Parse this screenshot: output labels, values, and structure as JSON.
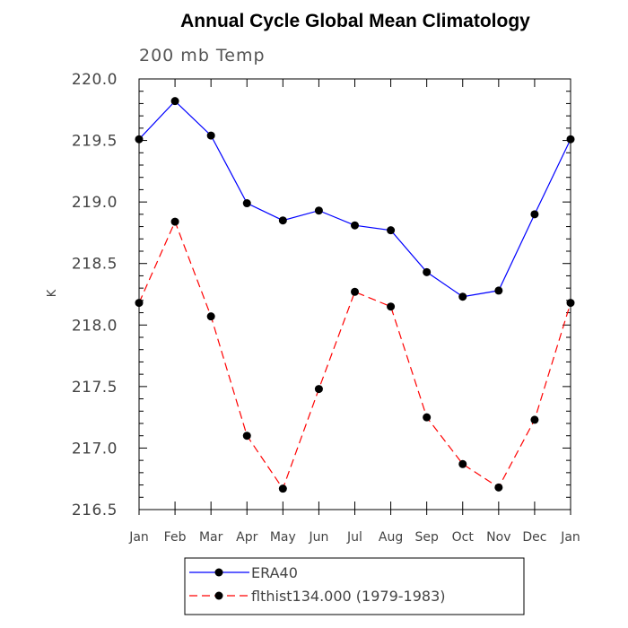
{
  "chart_data": {
    "type": "line",
    "title": "Annual Cycle Global Mean Climatology",
    "subtitle": "200 mb Temp",
    "xlabel": "",
    "ylabel": "K",
    "categories": [
      "Jan",
      "Feb",
      "Mar",
      "Apr",
      "May",
      "Jun",
      "Jul",
      "Aug",
      "Sep",
      "Oct",
      "Nov",
      "Dec",
      "Jan"
    ],
    "ylim": [
      216.5,
      220.0
    ],
    "yticks": [
      "216.5",
      "217.0",
      "217.5",
      "218.0",
      "218.5",
      "219.0",
      "219.5",
      "220.0"
    ],
    "grid": false,
    "legend_position": "bottom",
    "series": [
      {
        "name": "ERA40",
        "color": "#0000ff",
        "dash": "solid",
        "values": [
          219.51,
          219.82,
          219.54,
          218.99,
          218.85,
          218.93,
          218.81,
          218.77,
          218.43,
          218.23,
          218.28,
          218.9,
          219.51
        ]
      },
      {
        "name": "flthist134.000 (1979-1983)",
        "color": "#ff0000",
        "dash": "dashed",
        "values": [
          218.18,
          218.84,
          218.07,
          217.1,
          216.67,
          217.48,
          218.27,
          218.15,
          217.25,
          216.87,
          216.68,
          217.23,
          218.18
        ]
      }
    ]
  }
}
